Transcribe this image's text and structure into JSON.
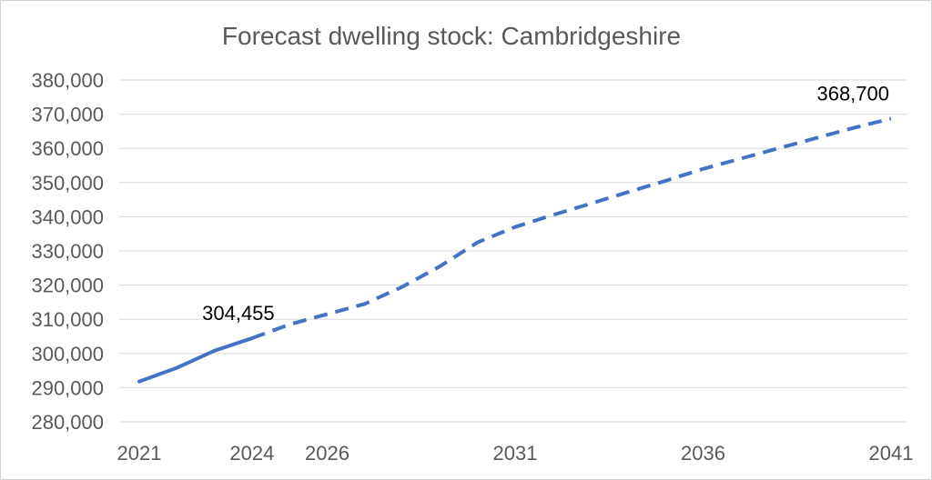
{
  "chart_data": {
    "type": "line",
    "title": "Forecast dwelling stock: Cambridgeshire",
    "xlabel": "",
    "ylabel": "",
    "x_range": [
      2021,
      2041
    ],
    "x_tick_values": [
      2021,
      2024,
      2026,
      2031,
      2036,
      2041
    ],
    "x_tick_labels": [
      "2021",
      "2024",
      "2026",
      "2031",
      "2036",
      "2041"
    ],
    "ylim": [
      280000,
      380000
    ],
    "y_tick_values": [
      280000,
      290000,
      300000,
      310000,
      320000,
      330000,
      340000,
      350000,
      360000,
      370000,
      380000
    ],
    "y_tick_labels": [
      "280,000",
      "290,000",
      "300,000",
      "310,000",
      "320,000",
      "330,000",
      "340,000",
      "350,000",
      "360,000",
      "370,000",
      "380,000"
    ],
    "grid": true,
    "series": [
      {
        "name": "",
        "line_style": "solid",
        "color": "#4472c4",
        "points": [
          {
            "x": 2021,
            "y": 291800
          },
          {
            "x": 2022,
            "y": 295800
          },
          {
            "x": 2023,
            "y": 300800
          },
          {
            "x": 2024,
            "y": 304455
          }
        ]
      },
      {
        "name": "",
        "line_style": "dashed",
        "color": "#4472c4",
        "points": [
          {
            "x": 2024,
            "y": 304455
          },
          {
            "x": 2025,
            "y": 308500
          },
          {
            "x": 2026,
            "y": 311500
          },
          {
            "x": 2027,
            "y": 314500
          },
          {
            "x": 2028,
            "y": 319500
          },
          {
            "x": 2029,
            "y": 325500
          },
          {
            "x": 2030,
            "y": 332500
          },
          {
            "x": 2031,
            "y": 337000
          },
          {
            "x": 2032,
            "y": 340500
          },
          {
            "x": 2033,
            "y": 343800
          },
          {
            "x": 2034,
            "y": 347200
          },
          {
            "x": 2035,
            "y": 350500
          },
          {
            "x": 2036,
            "y": 354000
          },
          {
            "x": 2037,
            "y": 357000
          },
          {
            "x": 2038,
            "y": 360000
          },
          {
            "x": 2039,
            "y": 363000
          },
          {
            "x": 2040,
            "y": 366000
          },
          {
            "x": 2041,
            "y": 368700
          }
        ]
      }
    ],
    "data_labels": [
      {
        "x": 2024,
        "y": 304455,
        "text": "304,455"
      },
      {
        "x": 2041,
        "y": 368700,
        "text": "368,700"
      }
    ]
  }
}
